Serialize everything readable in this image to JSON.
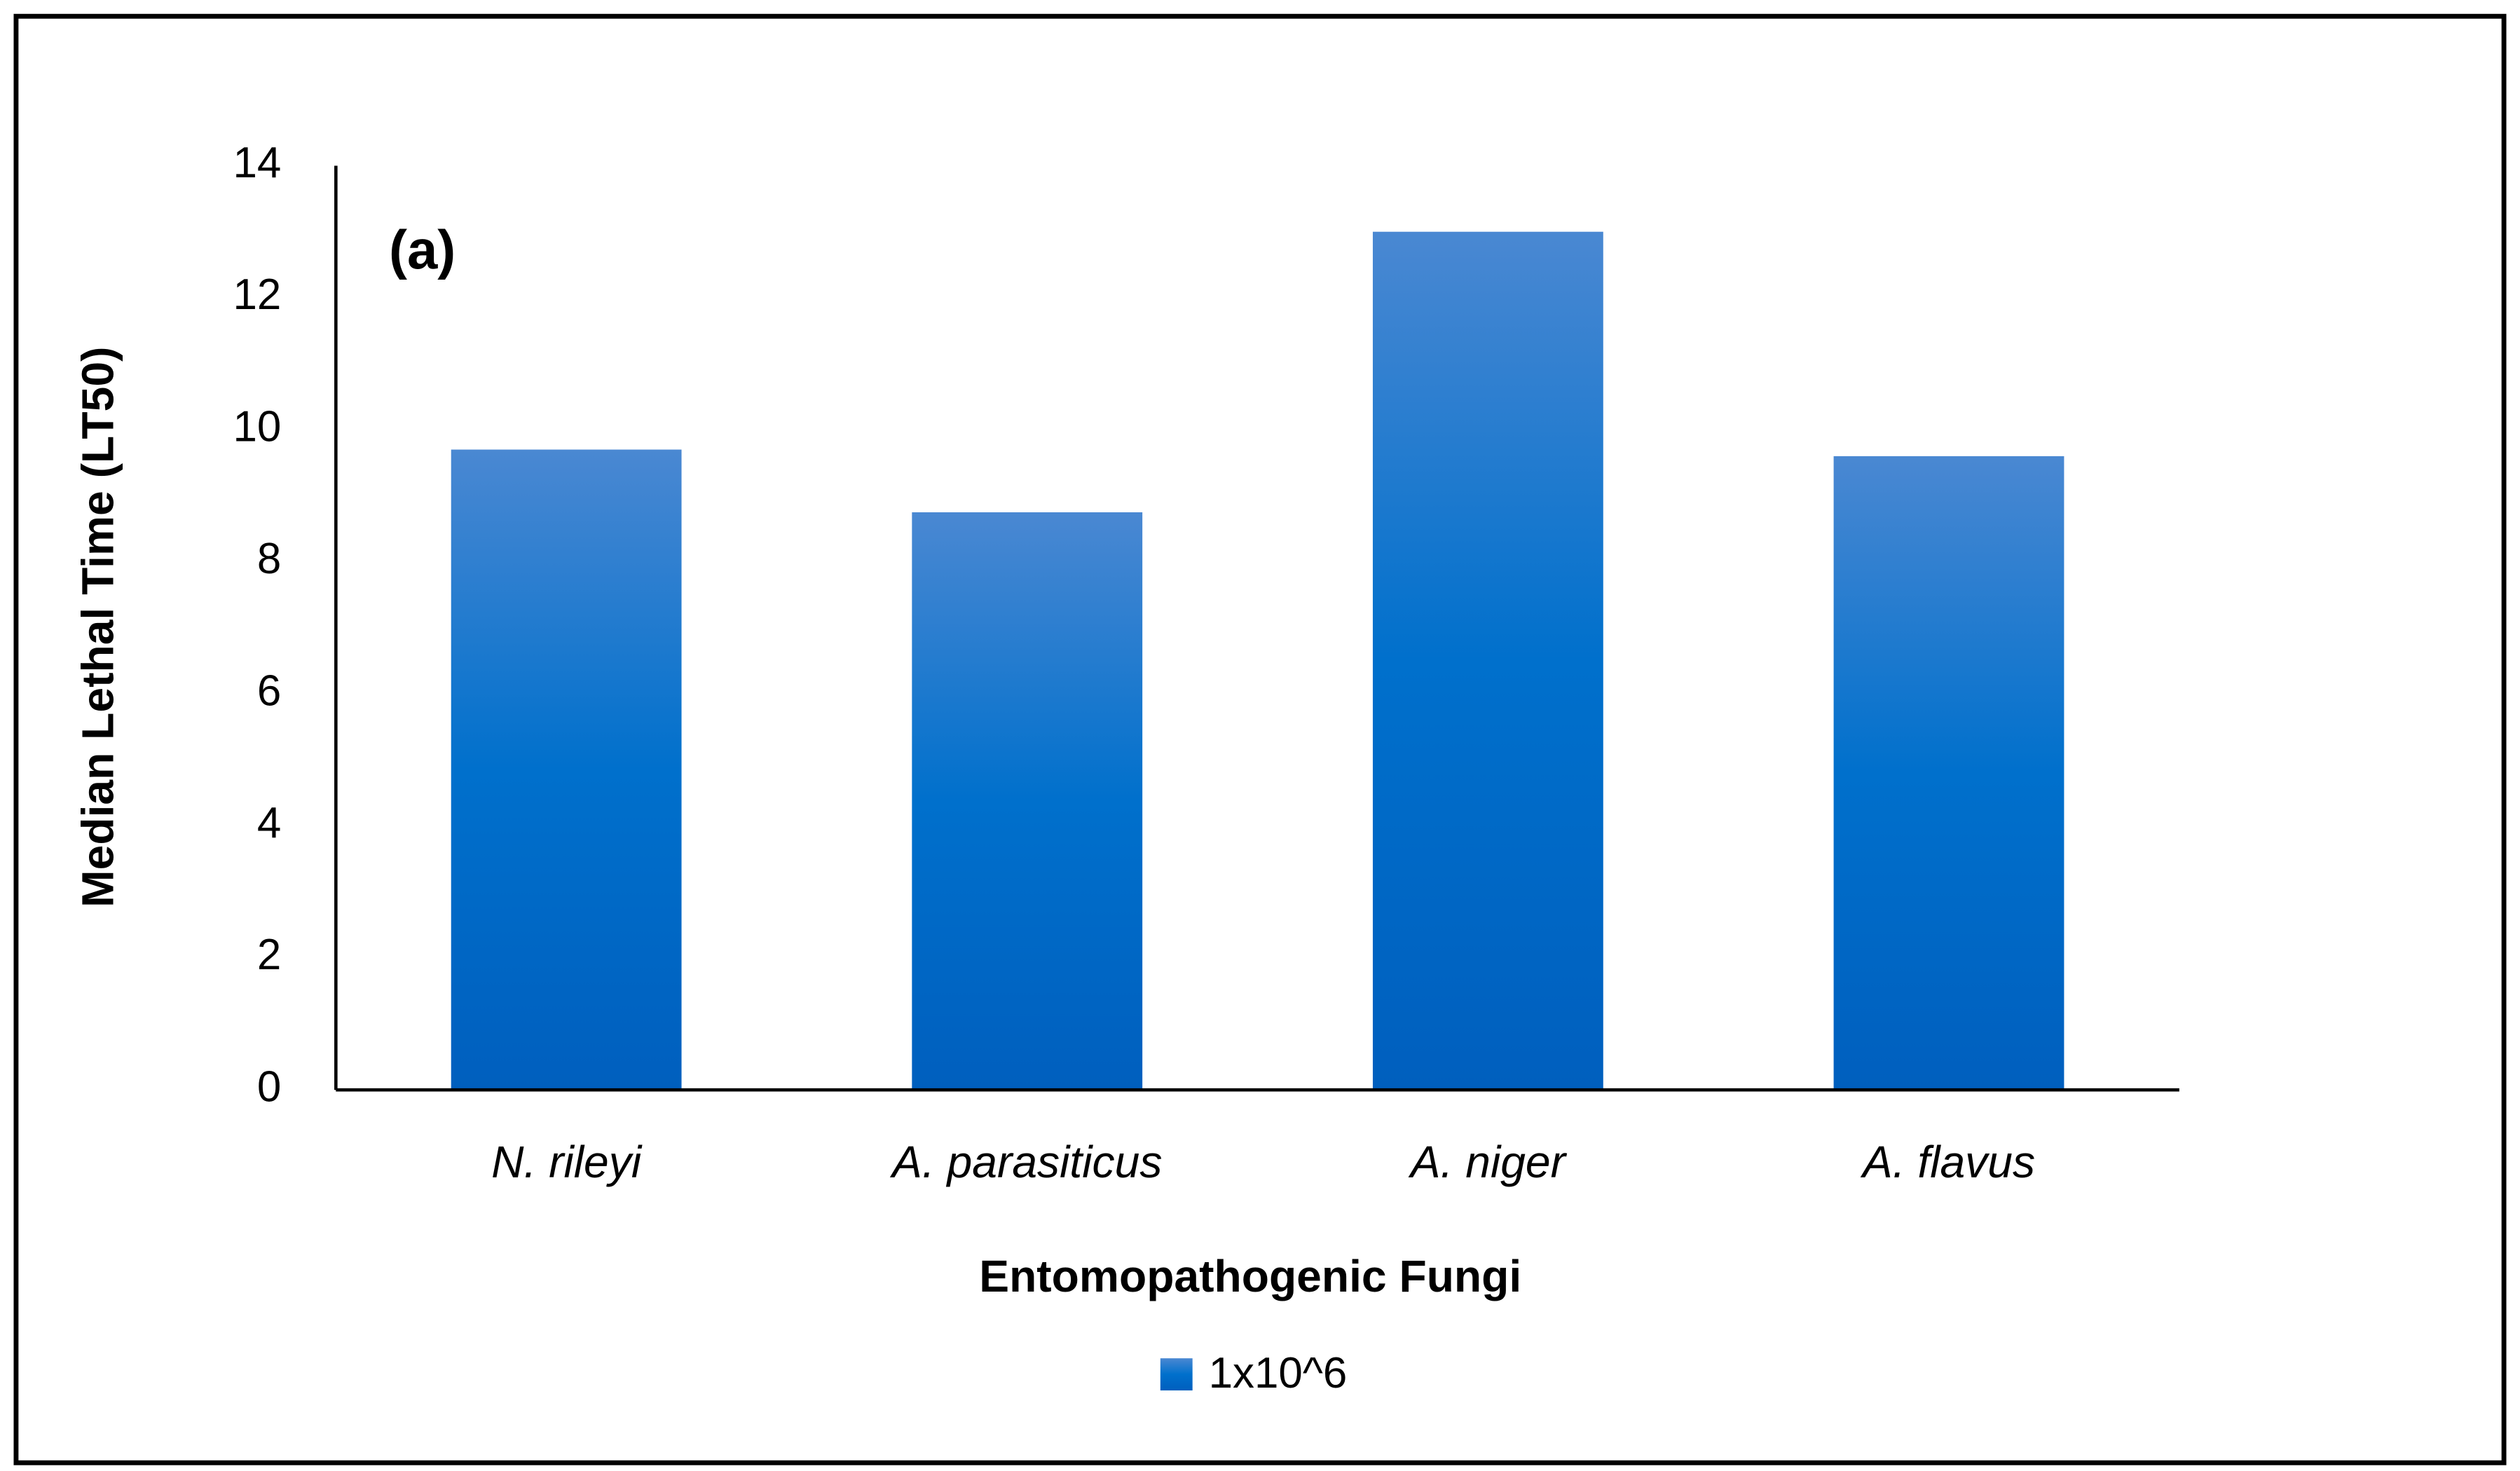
{
  "chart_data": {
    "type": "bar",
    "annotation": "(a)",
    "x_label": "Entomopathogenic Fungi",
    "y_label": "Median Lethal Time (LT50)",
    "categories": [
      "N. rileyi",
      "A. parasiticus",
      "A. niger",
      "A. flavus"
    ],
    "series": [
      {
        "name": "1x10^6",
        "color": "#0070cc",
        "values": [
          9.7,
          8.75,
          13,
          9.6
        ]
      }
    ],
    "ylim": [
      0,
      14
    ],
    "yticks": [
      0,
      2,
      4,
      6,
      8,
      10,
      12,
      14
    ],
    "grid": false,
    "legend": "bottom"
  }
}
